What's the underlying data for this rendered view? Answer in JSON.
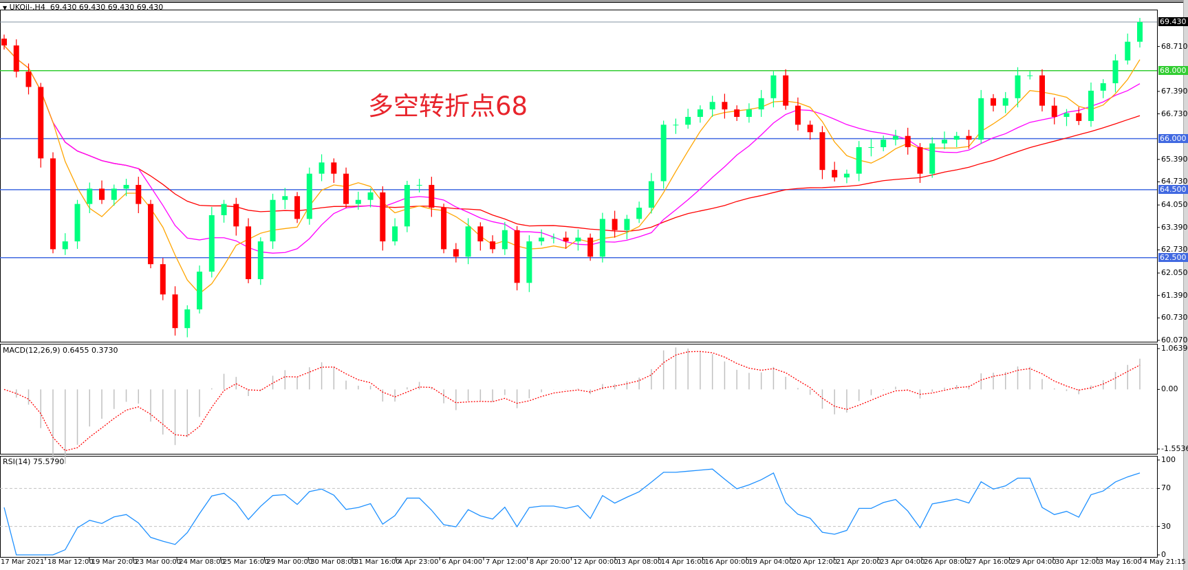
{
  "header": {
    "symbol_label": "UKOil-,H4",
    "ohlc_text": "69.430 69.430 69.430 69.430"
  },
  "annotation": "多空转折点68",
  "macd_label": "MACD(12,26,9) 0.6455 0.3730",
  "rsi_label": "RSI(14) 75.5790",
  "colors": {
    "bull": "#00ff7f",
    "bear": "#ff0000",
    "ma_fast": "#ffa500",
    "ma_mid": "#ff00ff",
    "ma_slow": "#ff0000",
    "level_green": "#32cd32",
    "level_blue": "#4169e1",
    "macd_hist": "#c0c0c0",
    "macd_signal": "#ff0000",
    "rsi": "#1e90ff"
  },
  "chart_data": {
    "type": "candlestick",
    "symbol": "UKOil-",
    "timeframe": "H4",
    "ylim": [
      60.07,
      69.43
    ],
    "price_ticks": [
      "68.710",
      "67.390",
      "66.730",
      "65.390",
      "64.730",
      "64.050",
      "63.390",
      "62.730",
      "62.050",
      "61.390",
      "60.730",
      "60.070"
    ],
    "current_price": "69.430",
    "levels": [
      {
        "value": "68.000",
        "color": "#32cd32"
      },
      {
        "value": "66.000",
        "color": "#4169e1"
      },
      {
        "value": "64.500",
        "color": "#4169e1"
      },
      {
        "value": "62.500",
        "color": "#4169e1"
      }
    ],
    "x_tick_labels": [
      "17 Mar 2021",
      "18 Mar 12:00",
      "19 Mar 20:00",
      "23 Mar 00:00",
      "24 Mar 08:00",
      "25 Mar 16:00",
      "29 Mar 00:00",
      "30 Mar 08:00",
      "31 Mar 16:00",
      "4 Apr 23:00",
      "6 Apr 04:00",
      "7 Apr 12:00",
      "8 Apr 20:00",
      "12 Apr 00:00",
      "13 Apr 08:00",
      "14 Apr 16:00",
      "16 Apr 00:00",
      "19 Apr 04:00",
      "20 Apr 12:00",
      "21 Apr 20:00",
      "23 Apr 04:00",
      "26 Apr 08:00",
      "27 Apr 16:00",
      "29 Apr 04:00",
      "30 Apr 12:00",
      "3 May 16:00",
      "4 May 21:15"
    ],
    "closes": [
      68.74,
      67.97,
      67.52,
      65.42,
      62.75,
      62.98,
      64.08,
      64.53,
      64.2,
      64.53,
      64.64,
      64.08,
      62.31,
      61.42,
      60.43,
      60.98,
      62.09,
      63.75,
      64.08,
      63.42,
      61.87,
      62.98,
      64.2,
      64.31,
      63.64,
      64.97,
      65.3,
      64.97,
      64.08,
      64.2,
      64.42,
      62.98,
      63.42,
      64.64,
      64.64,
      63.97,
      62.75,
      62.53,
      63.42,
      62.98,
      62.75,
      63.31,
      61.76,
      62.98,
      63.09,
      63.09,
      62.98,
      63.09,
      62.53,
      63.64,
      63.31,
      63.64,
      63.97,
      64.75,
      66.41,
      66.41,
      66.64,
      66.86,
      67.08,
      66.86,
      66.64,
      66.86,
      67.19,
      67.86,
      66.97,
      66.41,
      66.19,
      65.08,
      64.86,
      64.97,
      65.75,
      65.75,
      65.97,
      66.08,
      65.75,
      64.97,
      65.86,
      65.97,
      66.08,
      65.97,
      67.19,
      66.97,
      67.19,
      67.86,
      67.86,
      66.97,
      66.64,
      66.75,
      66.52,
      67.41,
      67.63,
      68.3,
      68.85,
      69.43
    ],
    "macd": {
      "ylim": [
        -1.5536,
        1.0639
      ],
      "ticks": [
        "1.0639",
        "0.00",
        "-1.5536"
      ]
    },
    "rsi": {
      "ylim": [
        0,
        100
      ],
      "ticks": [
        "100",
        "70",
        "30",
        "0"
      ],
      "levels": [
        70,
        30
      ]
    }
  }
}
